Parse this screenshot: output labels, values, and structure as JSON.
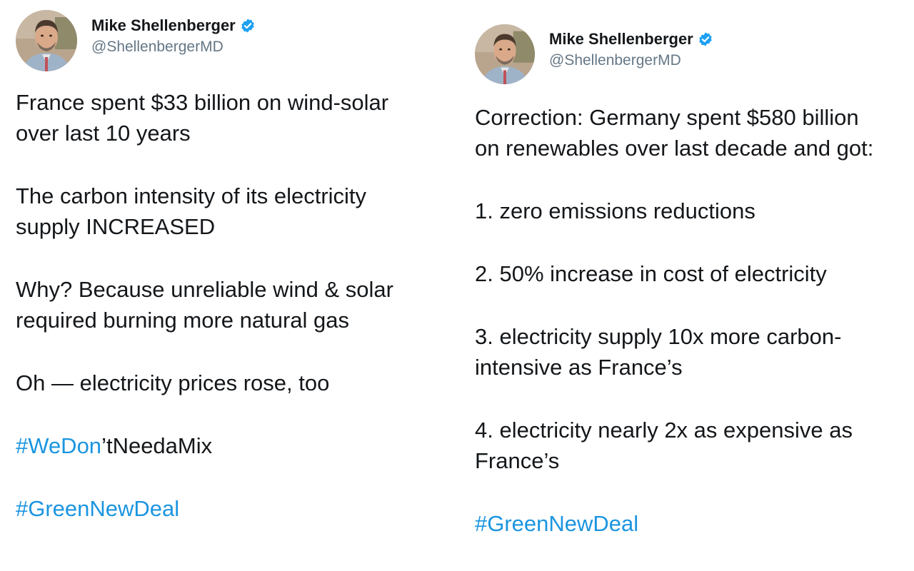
{
  "colors": {
    "text": "#14171a",
    "handle": "#657786",
    "link": "#1b95e0",
    "verified": "#1da1f2"
  },
  "tweets": [
    {
      "author": {
        "name": "Mike Shellenberger",
        "handle": "@ShellenbergerMD",
        "verified_icon": "verified-badge-icon",
        "avatar_icon": "avatar-photo"
      },
      "paragraphs": [
        "France spent $33 billion on wind-solar\nover last 10 years",
        "The carbon intensity of its electricity\nsupply INCREASED",
        "Why? Because unreliable wind & solar\nrequired burning more natural gas",
        "Oh — electricity prices rose, too"
      ],
      "hashtag_mixed": {
        "link_part": "#WeDon",
        "plain_part": "’tNeedaMix"
      },
      "hashtag": "#GreenNewDeal"
    },
    {
      "author": {
        "name": "Mike Shellenberger",
        "handle": "@ShellenbergerMD",
        "verified_icon": "verified-badge-icon",
        "avatar_icon": "avatar-photo"
      },
      "paragraphs": [
        "Correction: Germany spent $580 billion\non renewables over last decade and got:",
        "1. zero emissions reductions",
        "2. 50% increase in cost of electricity",
        "3. electricity supply 10x more carbon-\nintensive as France’s",
        "4. electricity nearly 2x as expensive as\nFrance’s"
      ],
      "hashtag": "#GreenNewDeal"
    }
  ]
}
